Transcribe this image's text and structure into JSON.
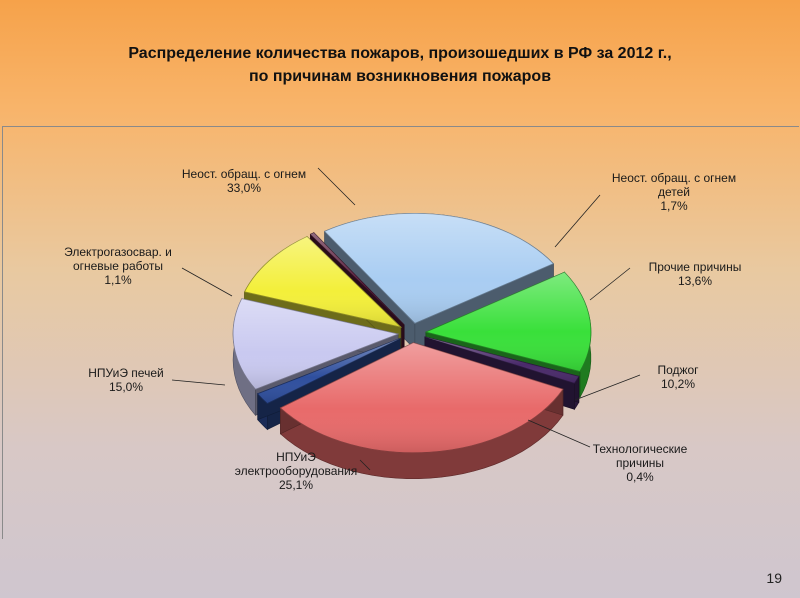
{
  "slide": {
    "title_line1": "Распределение количества пожаров, произошедших в РФ за 2012 г.,",
    "title_line2": "по причинам возникновения пожаров",
    "page_number": "19"
  },
  "chart_data": {
    "type": "pie",
    "style": "3d-exploded",
    "title": "Распределение количества пожаров, произошедших в РФ за 2012 г., по причинам возникновения пожаров",
    "slices": [
      {
        "label_lines": [
          "Неост. обращ. с огнем",
          "33,0%"
        ],
        "name": "Неост. обращ. с огнем",
        "value": 33.0,
        "value_text": "33,0%",
        "color": "#e86a6a"
      },
      {
        "label_lines": [
          "Неост. обращ. с огнем",
          "детей",
          "1,7%"
        ],
        "name": "Неост. обращ. с огнем детей",
        "value": 1.7,
        "value_text": "1,7%",
        "color": "#2f4f9e"
      },
      {
        "label_lines": [
          "Прочие причины",
          "13,6%"
        ],
        "name": "Прочие причины",
        "value": 13.6,
        "value_text": "13,6%",
        "color": "#c9c9f0"
      },
      {
        "label_lines": [
          "Поджог",
          "10,2%"
        ],
        "name": "Поджог",
        "value": 10.2,
        "value_text": "10,2%",
        "color": "#f3ef3a"
      },
      {
        "label_lines": [
          "Технологические",
          "причины",
          "0,4%"
        ],
        "name": "Технологические причины",
        "value": 0.4,
        "value_text": "0,4%",
        "color": "#5a1a3a"
      },
      {
        "label_lines": [
          "НПУиЭ",
          "электрооборудования",
          "25,1%"
        ],
        "name": "НПУиЭ электрооборудования",
        "value": 25.1,
        "value_text": "25,1%",
        "color": "#a9cdf2"
      },
      {
        "label_lines": [
          "НПУиЭ печей",
          "15,0%"
        ],
        "name": "НПУиЭ печей",
        "value": 15.0,
        "value_text": "15,0%",
        "color": "#39e03a"
      },
      {
        "label_lines": [
          "Электрогазосвар. и",
          "огневые работы",
          "1,1%"
        ],
        "name": "Электрогазосвар. и огневые работы",
        "value": 1.1,
        "value_text": "1,1%",
        "color": "#4a2a6a"
      }
    ]
  }
}
